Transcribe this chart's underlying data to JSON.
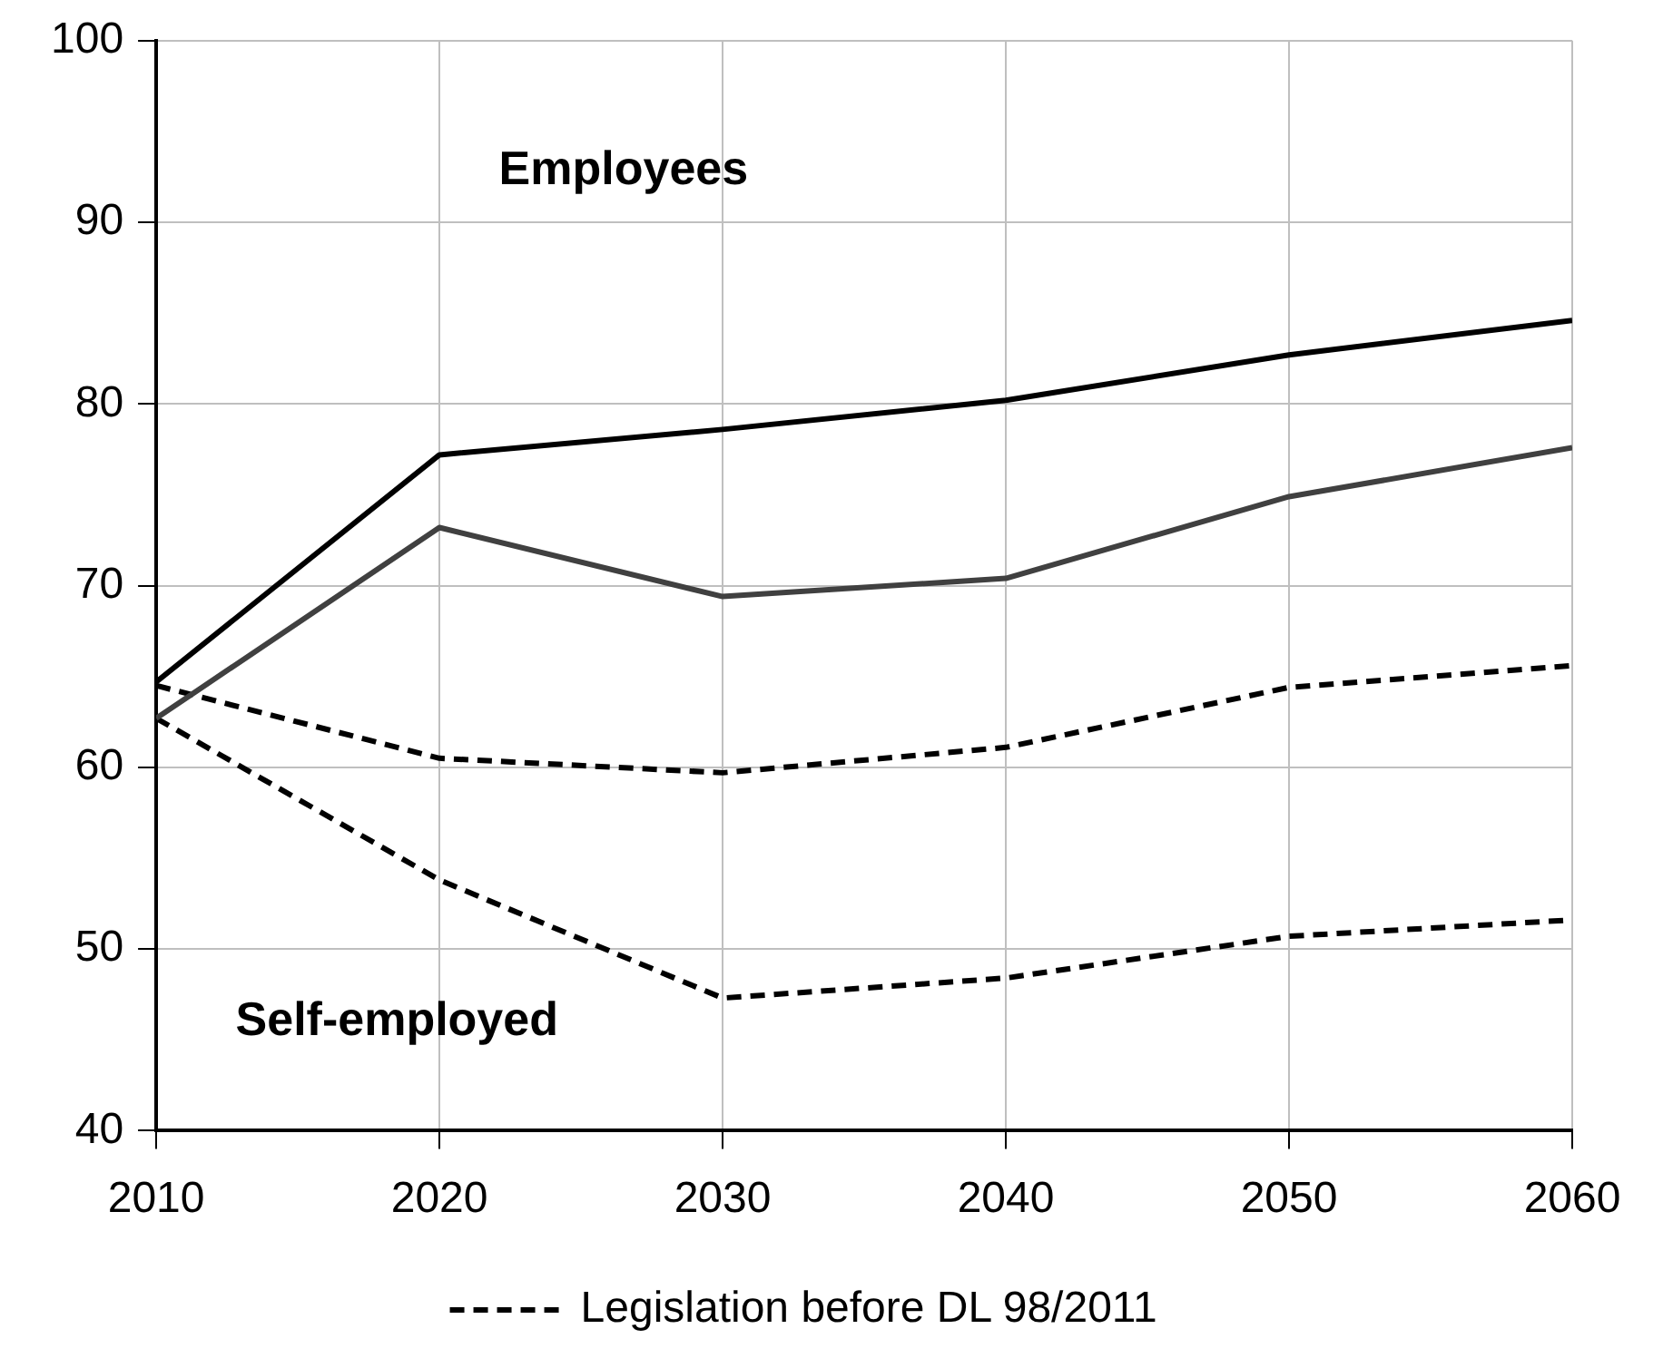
{
  "chart_data": {
    "type": "line",
    "x": [
      2010,
      2020,
      2030,
      2040,
      2050,
      2060
    ],
    "series": [
      {
        "color": "#000000",
        "line_style": "solid",
        "values": [
          64.7,
          77.2,
          78.6,
          80.2,
          82.7,
          84.6
        ]
      },
      {
        "color": "#404040",
        "line_style": "solid",
        "values": [
          62.7,
          73.2,
          69.4,
          70.4,
          74.9,
          77.6
        ]
      },
      {
        "name": "Legislation before DL 98/2011",
        "color": "#000000",
        "line_style": "dashed",
        "values": [
          64.5,
          60.5,
          59.7,
          61.1,
          64.4,
          65.6
        ]
      },
      {
        "color": "#000000",
        "line_style": "dashed",
        "values": [
          62.7,
          53.8,
          47.3,
          48.4,
          50.7,
          51.6
        ]
      }
    ],
    "xlim": [
      2010,
      2060
    ],
    "xticks": [
      2010,
      2020,
      2030,
      2040,
      2050,
      2060
    ],
    "ylim": [
      40,
      100
    ],
    "yticks": [
      40,
      50,
      60,
      70,
      80,
      90,
      100
    ],
    "grid": true,
    "marker": "none",
    "legend": "bottom",
    "annotations": [
      "Employees",
      "Self-employed"
    ]
  }
}
